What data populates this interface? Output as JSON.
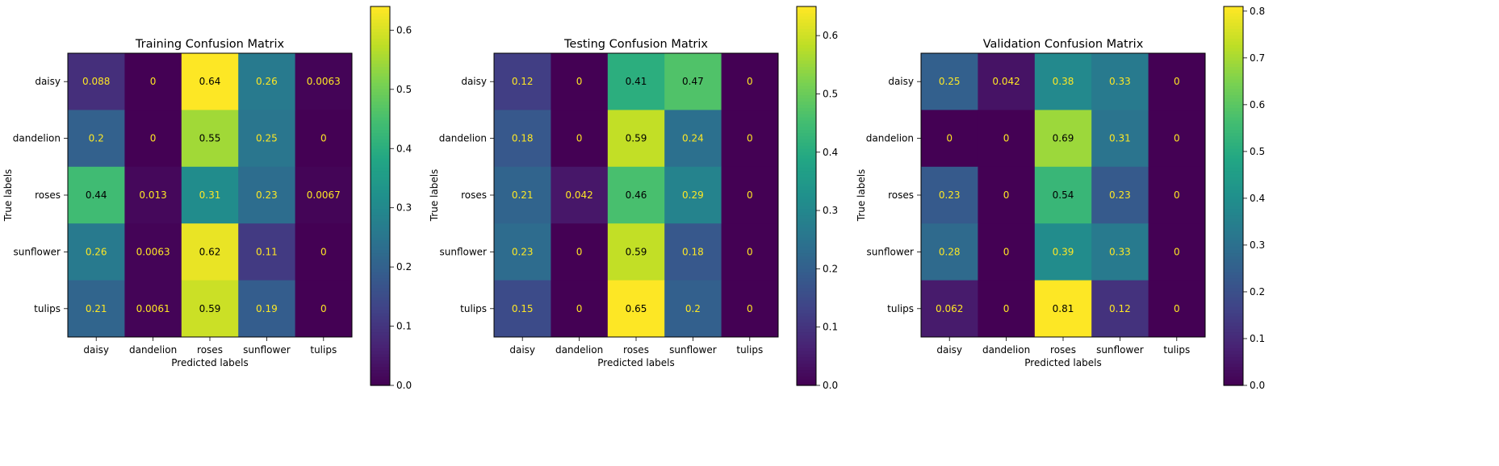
{
  "chart_data": [
    {
      "type": "heatmap",
      "title": "Training Confusion Matrix",
      "xlabel": "Predicted labels",
      "ylabel": "True labels",
      "x_categories": [
        "daisy",
        "dandelion",
        "roses",
        "sunflower",
        "tulips"
      ],
      "y_categories": [
        "daisy",
        "dandelion",
        "roses",
        "sunflower",
        "tulips"
      ],
      "values": [
        [
          0.088,
          0,
          0.64,
          0.26,
          0.0063
        ],
        [
          0.2,
          0,
          0.55,
          0.25,
          0
        ],
        [
          0.44,
          0.013,
          0.31,
          0.23,
          0.0067
        ],
        [
          0.26,
          0.0063,
          0.62,
          0.11,
          0
        ],
        [
          0.21,
          0.0061,
          0.59,
          0.19,
          0
        ]
      ],
      "value_labels": [
        [
          "0.088",
          "0",
          "0.64",
          "0.26",
          "0.0063"
        ],
        [
          "0.2",
          "0",
          "0.55",
          "0.25",
          "0"
        ],
        [
          "0.44",
          "0.013",
          "0.31",
          "0.23",
          "0.0067"
        ],
        [
          "0.26",
          "0.0063",
          "0.62",
          "0.11",
          "0"
        ],
        [
          "0.21",
          "0.0061",
          "0.59",
          "0.19",
          "0"
        ]
      ],
      "colorbar": {
        "colormap": "viridis",
        "range": [
          0,
          0.64
        ],
        "ticks": [
          0,
          0.1,
          0.2,
          0.3,
          0.4,
          0.5,
          0.6
        ],
        "tick_labels": [
          "0.0",
          "0.1",
          "0.2",
          "0.3",
          "0.4",
          "0.5",
          "0.6"
        ]
      }
    },
    {
      "type": "heatmap",
      "title": "Testing Confusion Matrix",
      "xlabel": "Predicted labels",
      "ylabel": "True labels",
      "x_categories": [
        "daisy",
        "dandelion",
        "roses",
        "sunflower",
        "tulips"
      ],
      "y_categories": [
        "daisy",
        "dandelion",
        "roses",
        "sunflower",
        "tulips"
      ],
      "values": [
        [
          0.12,
          0,
          0.41,
          0.47,
          0
        ],
        [
          0.18,
          0,
          0.59,
          0.24,
          0
        ],
        [
          0.21,
          0.042,
          0.46,
          0.29,
          0
        ],
        [
          0.23,
          0,
          0.59,
          0.18,
          0
        ],
        [
          0.15,
          0,
          0.65,
          0.2,
          0
        ]
      ],
      "value_labels": [
        [
          "0.12",
          "0",
          "0.41",
          "0.47",
          "0"
        ],
        [
          "0.18",
          "0",
          "0.59",
          "0.24",
          "0"
        ],
        [
          "0.21",
          "0.042",
          "0.46",
          "0.29",
          "0"
        ],
        [
          "0.23",
          "0",
          "0.59",
          "0.18",
          "0"
        ],
        [
          "0.15",
          "0",
          "0.65",
          "0.2",
          "0"
        ]
      ],
      "colorbar": {
        "colormap": "viridis",
        "range": [
          0,
          0.65
        ],
        "ticks": [
          0,
          0.1,
          0.2,
          0.3,
          0.4,
          0.5,
          0.6
        ],
        "tick_labels": [
          "0.0",
          "0.1",
          "0.2",
          "0.3",
          "0.4",
          "0.5",
          "0.6"
        ]
      }
    },
    {
      "type": "heatmap",
      "title": "Validation Confusion Matrix",
      "xlabel": "Predicted labels",
      "ylabel": "True labels",
      "x_categories": [
        "daisy",
        "dandelion",
        "roses",
        "sunflower",
        "tulips"
      ],
      "y_categories": [
        "daisy",
        "dandelion",
        "roses",
        "sunflower",
        "tulips"
      ],
      "values": [
        [
          0.25,
          0.042,
          0.38,
          0.33,
          0
        ],
        [
          0,
          0,
          0.69,
          0.31,
          0
        ],
        [
          0.23,
          0,
          0.54,
          0.23,
          0
        ],
        [
          0.28,
          0,
          0.39,
          0.33,
          0
        ],
        [
          0.062,
          0,
          0.81,
          0.12,
          0
        ]
      ],
      "value_labels": [
        [
          "0.25",
          "0.042",
          "0.38",
          "0.33",
          "0"
        ],
        [
          "0",
          "0",
          "0.69",
          "0.31",
          "0"
        ],
        [
          "0.23",
          "0",
          "0.54",
          "0.23",
          "0"
        ],
        [
          "0.28",
          "0",
          "0.39",
          "0.33",
          "0"
        ],
        [
          "0.062",
          "0",
          "0.81",
          "0.12",
          "0"
        ]
      ],
      "colorbar": {
        "colormap": "viridis",
        "range": [
          0,
          0.81
        ],
        "ticks": [
          0,
          0.1,
          0.2,
          0.3,
          0.4,
          0.5,
          0.6,
          0.7,
          0.8
        ],
        "tick_labels": [
          "0.0",
          "0.1",
          "0.2",
          "0.3",
          "0.4",
          "0.5",
          "0.6",
          "0.7",
          "0.8"
        ]
      }
    }
  ]
}
